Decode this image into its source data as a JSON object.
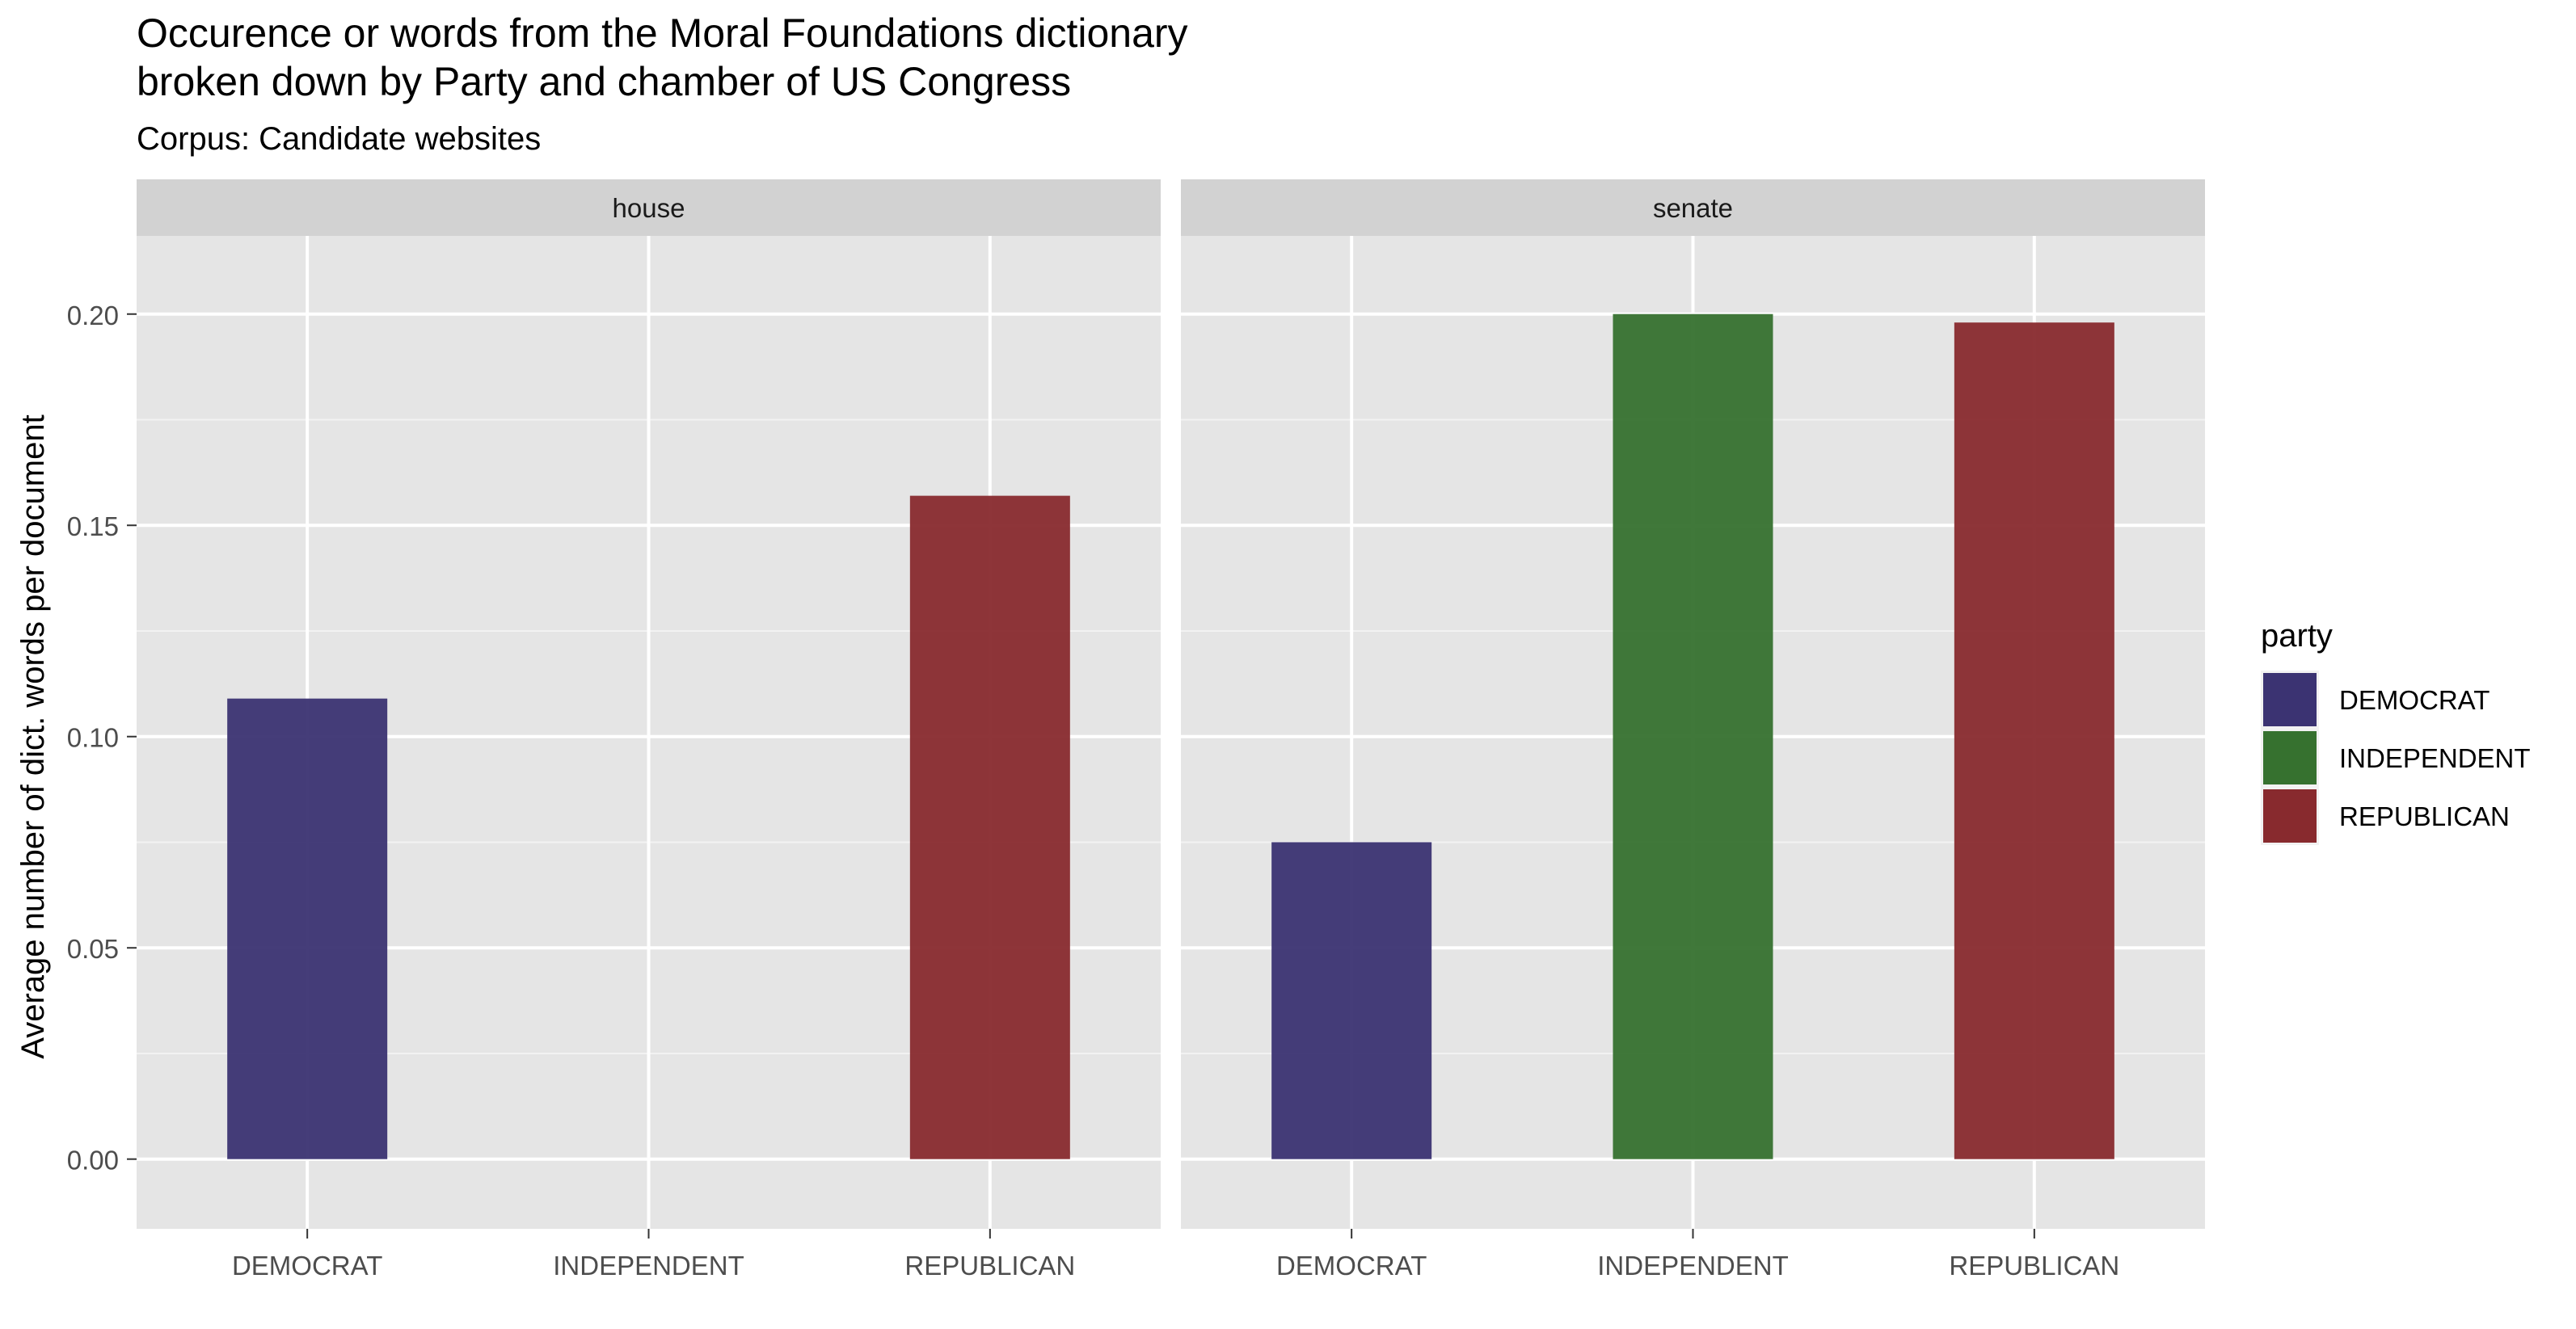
{
  "chart_data": {
    "type": "bar",
    "title_line1": "Occurence or words from the Moral Foundations dictionary",
    "title_line2": "broken down by Party and chamber of US Congress",
    "subtitle": "Corpus: Candidate websites",
    "ylabel": "Average number of dict. words per document",
    "xlabel": "",
    "ylim": [
      -0.0165,
      0.2185
    ],
    "yticks": [
      0.0,
      0.05,
      0.1,
      0.15,
      0.2
    ],
    "ytick_labels": [
      "0.00",
      "0.05",
      "0.10",
      "0.15",
      "0.20"
    ],
    "categories": [
      "DEMOCRAT",
      "INDEPENDENT",
      "REPUBLICAN"
    ],
    "grid": true,
    "facets": [
      {
        "label": "house",
        "values": [
          0.109,
          0.0,
          0.157
        ]
      },
      {
        "label": "senate",
        "values": [
          0.075,
          0.2,
          0.198
        ]
      }
    ],
    "legend": {
      "title": "party",
      "placement": "right",
      "entries": [
        "DEMOCRAT",
        "INDEPENDENT",
        "REPUBLICAN"
      ]
    },
    "colors": {
      "DEMOCRAT": "#3b3372",
      "INDEPENDENT": "#36712f",
      "REPUBLICAN": "#882a2e",
      "panel_bg": "#e5e5e5",
      "strip_bg": "#d2d2d2",
      "grid_major": "#ffffff",
      "grid_minor": "#f2f2f2"
    }
  }
}
